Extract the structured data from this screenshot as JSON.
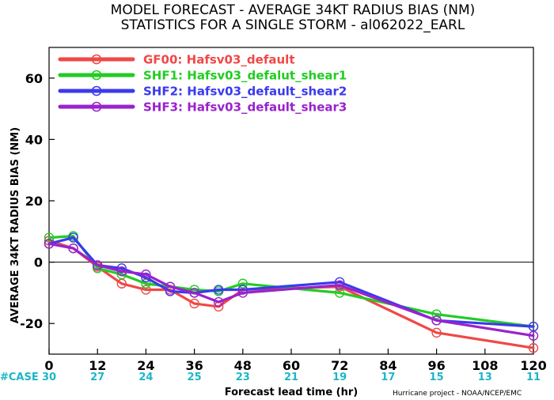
{
  "header": {
    "title_line1": "MODEL FORECAST - AVERAGE 34KT RADIUS BIAS (NM)",
    "title_line2": "STATISTICS FOR A SINGLE STORM - al062022_EARL"
  },
  "cases_label": "#CASE",
  "credit": "Hurricane project - NOAA/NCEP/EMC",
  "chart_data": {
    "type": "line",
    "title": "MODEL FORECAST - AVERAGE 34KT RADIUS BIAS (NM)",
    "subtitle": "STATISTICS FOR A SINGLE STORM - al062022_EARL",
    "xlabel": "Forecast lead time (hr)",
    "ylabel": "AVERAGE 34KT RADIUS BIAS (NM)",
    "xlim": [
      0,
      120
    ],
    "ylim": [
      -30,
      70
    ],
    "xticks": [
      0,
      12,
      24,
      36,
      48,
      60,
      72,
      84,
      96,
      108,
      120
    ],
    "yticks": [
      -20,
      0,
      20,
      40,
      60
    ],
    "legend_position": "top-left",
    "reference_line": 0,
    "case_counts": [
      30,
      27,
      24,
      25,
      23,
      21,
      19,
      17,
      15,
      13,
      11
    ],
    "series": [
      {
        "name": "GF00: Hafsv03_default",
        "color": "#f04848",
        "x": [
          0,
          6,
          12,
          18,
          24,
          30,
          36,
          42,
          48,
          72,
          96,
          120
        ],
        "y": [
          7,
          4.5,
          -1.5,
          -7,
          -9,
          -9,
          -13.5,
          -14.5,
          -9,
          -8,
          -23,
          -28
        ]
      },
      {
        "name": "SHF1: Hafsv03_defalut_shear1",
        "color": "#22cc22",
        "x": [
          0,
          6,
          12,
          18,
          24,
          30,
          36,
          42,
          48,
          72,
          96,
          120
        ],
        "y": [
          8,
          8.5,
          -2,
          -4,
          -7,
          -8,
          -9,
          -9.5,
          -7,
          -10,
          -17,
          -21
        ]
      },
      {
        "name": "SHF2: Hafsv03_default_shear2",
        "color": "#3a3aee",
        "x": [
          0,
          6,
          12,
          18,
          24,
          30,
          36,
          42,
          48,
          72,
          96,
          120
        ],
        "y": [
          6,
          8,
          -1,
          -2,
          -5,
          -9.5,
          -10,
          -9,
          -9,
          -6.5,
          -19,
          -21
        ]
      },
      {
        "name": "SHF3: Hafsv03_default_shear3",
        "color": "#9a22cc",
        "x": [
          0,
          6,
          12,
          18,
          24,
          30,
          36,
          42,
          48,
          72,
          96,
          120
        ],
        "y": [
          6,
          4.5,
          -1,
          -3,
          -4,
          -8,
          -10,
          -13,
          -10,
          -7.5,
          -19,
          -24
        ]
      }
    ]
  }
}
